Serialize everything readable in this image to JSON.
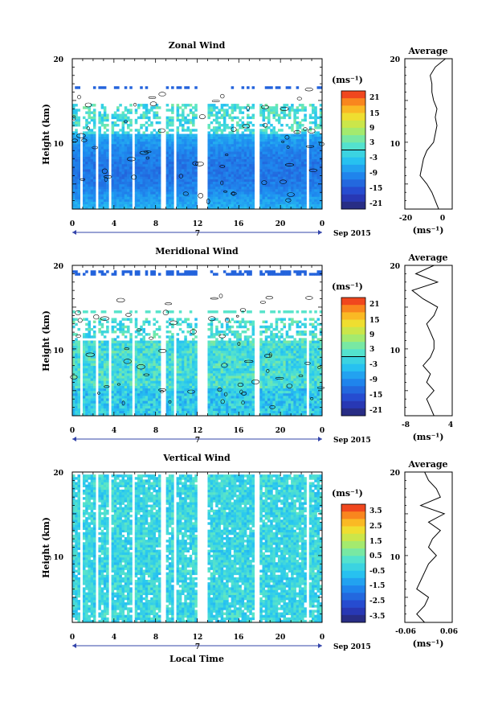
{
  "figure": {
    "x_axis_label": "Local Time",
    "date_label": "Sep 2015",
    "day_marker": "7",
    "units_label": "(ms⁻¹)"
  },
  "chart_data": [
    {
      "id": "zonal",
      "type": "heatmap",
      "title": "Zonal Wind",
      "ylabel": "Height (km)",
      "xlabel": "",
      "x_ticks": [
        "0",
        "4",
        "8",
        "12",
        "16",
        "20",
        "0"
      ],
      "x_range_hours": [
        0,
        24
      ],
      "y_ticks": [
        "20",
        "10"
      ],
      "ylim_km": [
        2,
        20
      ],
      "colorbar": {
        "ticks": [
          "21",
          "15",
          "9",
          "3",
          "-3",
          "-9",
          "-15",
          "-21"
        ],
        "range": [
          -24,
          24
        ],
        "units": "(ms⁻¹)"
      },
      "contour_level": 0,
      "profile": {
        "title": "Average",
        "xlabel": "(ms⁻¹)",
        "x_ticks": [
          "-20",
          "0"
        ],
        "xlim": [
          -22,
          6
        ],
        "y_ticks": [
          "20",
          "10"
        ],
        "height_km": [
          2,
          3,
          4,
          5,
          6,
          7,
          8,
          9,
          10,
          11,
          12,
          13,
          14,
          15,
          16,
          17,
          18,
          19,
          20
        ],
        "values": [
          -2,
          -4,
          -6,
          -9,
          -13,
          -12,
          -11,
          -9,
          -5,
          -4,
          -3,
          -4,
          -3,
          -5,
          -6,
          -6,
          -7,
          -4,
          2
        ]
      }
    },
    {
      "id": "meridional",
      "type": "heatmap",
      "title": "Meridional Wind",
      "ylabel": "Height (km)",
      "xlabel": "",
      "x_ticks": [
        "0",
        "4",
        "8",
        "12",
        "16",
        "20",
        "0"
      ],
      "x_range_hours": [
        0,
        24
      ],
      "y_ticks": [
        "20",
        "10"
      ],
      "ylim_km": [
        2,
        20
      ],
      "colorbar": {
        "ticks": [
          "21",
          "15",
          "9",
          "3",
          "-3",
          "-9",
          "-15",
          "-21"
        ],
        "range": [
          -24,
          24
        ],
        "units": "(ms⁻¹)"
      },
      "contour_level": 0,
      "profile": {
        "title": "Average",
        "xlabel": "(ms⁻¹)",
        "x_ticks": [
          "-8",
          "4"
        ],
        "xlim": [
          -8,
          5
        ],
        "y_ticks": [
          "20",
          "10"
        ],
        "height_km": [
          2,
          3,
          4,
          5,
          6,
          7,
          8,
          9,
          10,
          11,
          12,
          13,
          14,
          15,
          16,
          17,
          18,
          19,
          20
        ],
        "values": [
          0,
          -1,
          -2,
          0,
          -2,
          -1,
          -3,
          -1,
          0,
          0,
          -1,
          -2,
          0,
          1,
          -3,
          -6,
          1,
          -5,
          0
        ]
      }
    },
    {
      "id": "vertical",
      "type": "heatmap",
      "title": "Vertical Wind",
      "ylabel": "Height (km)",
      "xlabel": "Local Time",
      "x_ticks": [
        "0",
        "4",
        "8",
        "12",
        "16",
        "20",
        "0"
      ],
      "x_range_hours": [
        0,
        24
      ],
      "y_ticks": [
        "20",
        "10"
      ],
      "ylim_km": [
        2,
        20
      ],
      "colorbar": {
        "ticks": [
          "3.5",
          "2.5",
          "1.5",
          "0.5",
          "-0.5",
          "-1.5",
          "-2.5",
          "-3.5"
        ],
        "range": [
          -4,
          4
        ],
        "units": "(ms⁻¹)"
      },
      "profile": {
        "title": "Average",
        "xlabel": "(ms⁻¹)",
        "x_ticks": [
          "-0.06",
          "0.06"
        ],
        "xlim": [
          -0.06,
          0.06
        ],
        "y_ticks": [
          "20",
          "10"
        ],
        "height_km": [
          2,
          3,
          4,
          5,
          6,
          7,
          8,
          9,
          10,
          11,
          12,
          13,
          14,
          15,
          16,
          17,
          18,
          19,
          20
        ],
        "values": [
          -0.01,
          -0.03,
          -0.01,
          0.0,
          -0.03,
          -0.02,
          -0.01,
          0.0,
          0.02,
          0.0,
          0.01,
          0.03,
          0.0,
          0.04,
          -0.02,
          0.03,
          0.02,
          0.0,
          -0.01
        ]
      }
    }
  ]
}
